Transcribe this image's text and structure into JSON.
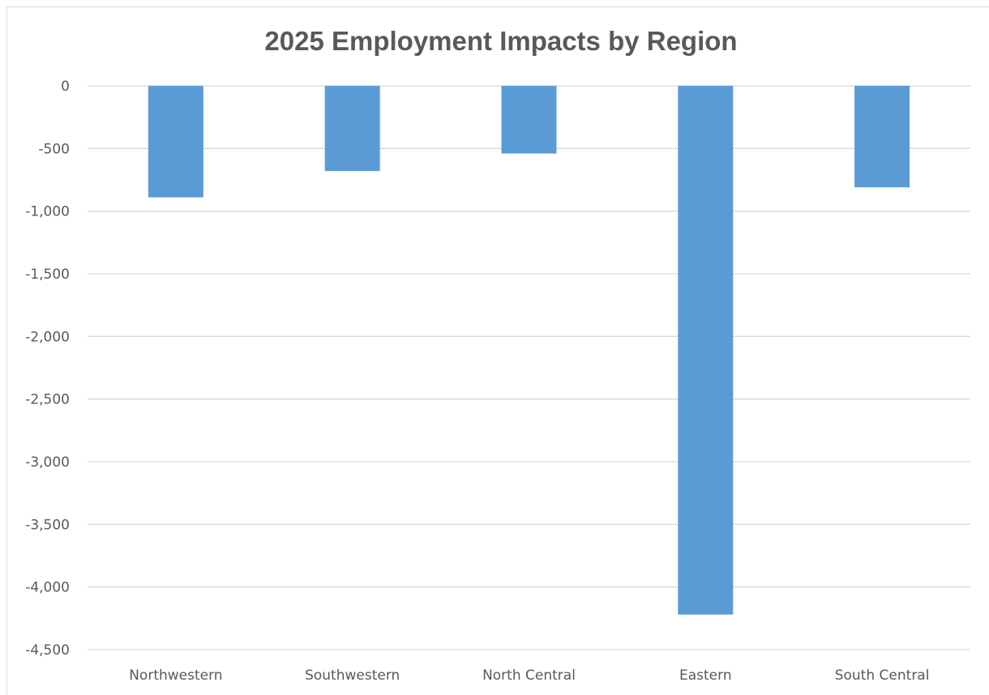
{
  "chart_data": {
    "type": "bar",
    "title": "2025 Employment Impacts by Region",
    "xlabel": "",
    "ylabel": "",
    "categories": [
      "Northwestern",
      "Southwestern",
      "North Central",
      "Eastern",
      "South Central"
    ],
    "values": [
      -890,
      -680,
      -540,
      -4220,
      -810
    ],
    "ylim": [
      -4500,
      0
    ],
    "yticks": [
      0,
      -500,
      -1000,
      -1500,
      -2000,
      -2500,
      -3000,
      -3500,
      -4000,
      -4500
    ],
    "ytick_labels": [
      "0",
      "-500",
      "-1,000",
      "-1,500",
      "-2,000",
      "-2,500",
      "-3,000",
      "-3,500",
      "-4,000",
      "-4,500"
    ],
    "grid": true,
    "legend": "none",
    "colors": {
      "bar": "#5b9bd5",
      "grid": "#d9d9d9",
      "text": "#595959"
    }
  }
}
